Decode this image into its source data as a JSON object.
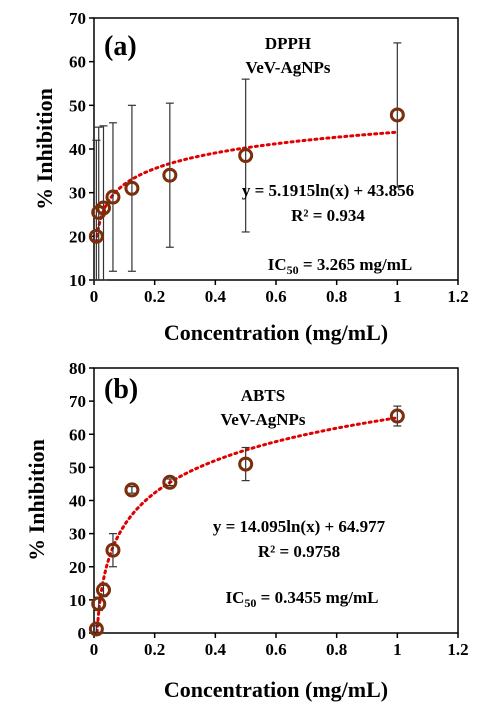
{
  "chart_data": [
    {
      "type": "scatter",
      "panel_label": "(a)",
      "title_lines": [
        "DPPH",
        "VeV-AgNPs"
      ],
      "xlabel": "Concentration (mg/mL)",
      "ylabel": "% Inhibition",
      "xlim": [
        0,
        1.2
      ],
      "ylim": [
        10,
        70
      ],
      "xticks": [
        "0",
        "0.2",
        "0.4",
        "0.6",
        "0.8",
        "1",
        "1.2"
      ],
      "yticks": [
        "10",
        "20",
        "30",
        "40",
        "50",
        "60",
        "70"
      ],
      "x": [
        0.0078,
        0.0156,
        0.0313,
        0.0625,
        0.125,
        0.25,
        0.5,
        1.0
      ],
      "y": [
        20.0,
        25.5,
        26.5,
        29.0,
        31.0,
        34.0,
        38.5,
        47.8
      ],
      "error_low": [
        10.0,
        15.5,
        16.5,
        17.0,
        19.0,
        16.5,
        17.5,
        16.5
      ],
      "error_high": [
        22.0,
        19.5,
        18.8,
        17.0,
        19.0,
        16.5,
        17.5,
        16.5
      ],
      "trendline": {
        "type": "logarithmic",
        "a": 5.1915,
        "b": 43.856
      },
      "equation": "y = 5.1915ln(x) + 43.856",
      "r2": "R² = 0.934",
      "ic50_label": "IC",
      "ic50_sub": "50",
      "ic50_value": " = 3.265 mg/mL",
      "grid": false,
      "marker_color": "#7b2e0c",
      "trend_color": "#e00000"
    },
    {
      "type": "scatter",
      "panel_label": "(b)",
      "title_lines": [
        "ABTS",
        "VeV-AgNPs"
      ],
      "xlabel": "Concentration (mg/mL)",
      "ylabel": "% Inhibition",
      "xlim": [
        0,
        1.2
      ],
      "ylim": [
        0,
        80
      ],
      "xticks": [
        "0",
        "0.2",
        "0.4",
        "0.6",
        "0.8",
        "1",
        "1.2"
      ],
      "yticks": [
        "0",
        "10",
        "20",
        "30",
        "40",
        "50",
        "60",
        "70",
        "80"
      ],
      "x": [
        0.0078,
        0.0156,
        0.0313,
        0.0625,
        0.125,
        0.25,
        0.5,
        1.0
      ],
      "y": [
        1.2,
        8.8,
        13.0,
        25.0,
        43.2,
        45.5,
        51.0,
        65.5
      ],
      "error_low": [
        1.0,
        2.0,
        2.0,
        5.0,
        1.0,
        1.0,
        5.0,
        3.0
      ],
      "error_high": [
        1.0,
        2.0,
        2.0,
        5.0,
        1.0,
        1.0,
        5.0,
        3.0
      ],
      "trendline": {
        "type": "logarithmic",
        "a": 14.095,
        "b": 64.977
      },
      "equation": "y = 14.095ln(x) + 64.977",
      "r2": "R² = 0.9758",
      "ic50_label": "IC",
      "ic50_sub": "50",
      "ic50_value": " = 0.3455 mg/mL",
      "grid": false,
      "marker_color": "#7b2e0c",
      "trend_color": "#e00000"
    }
  ]
}
